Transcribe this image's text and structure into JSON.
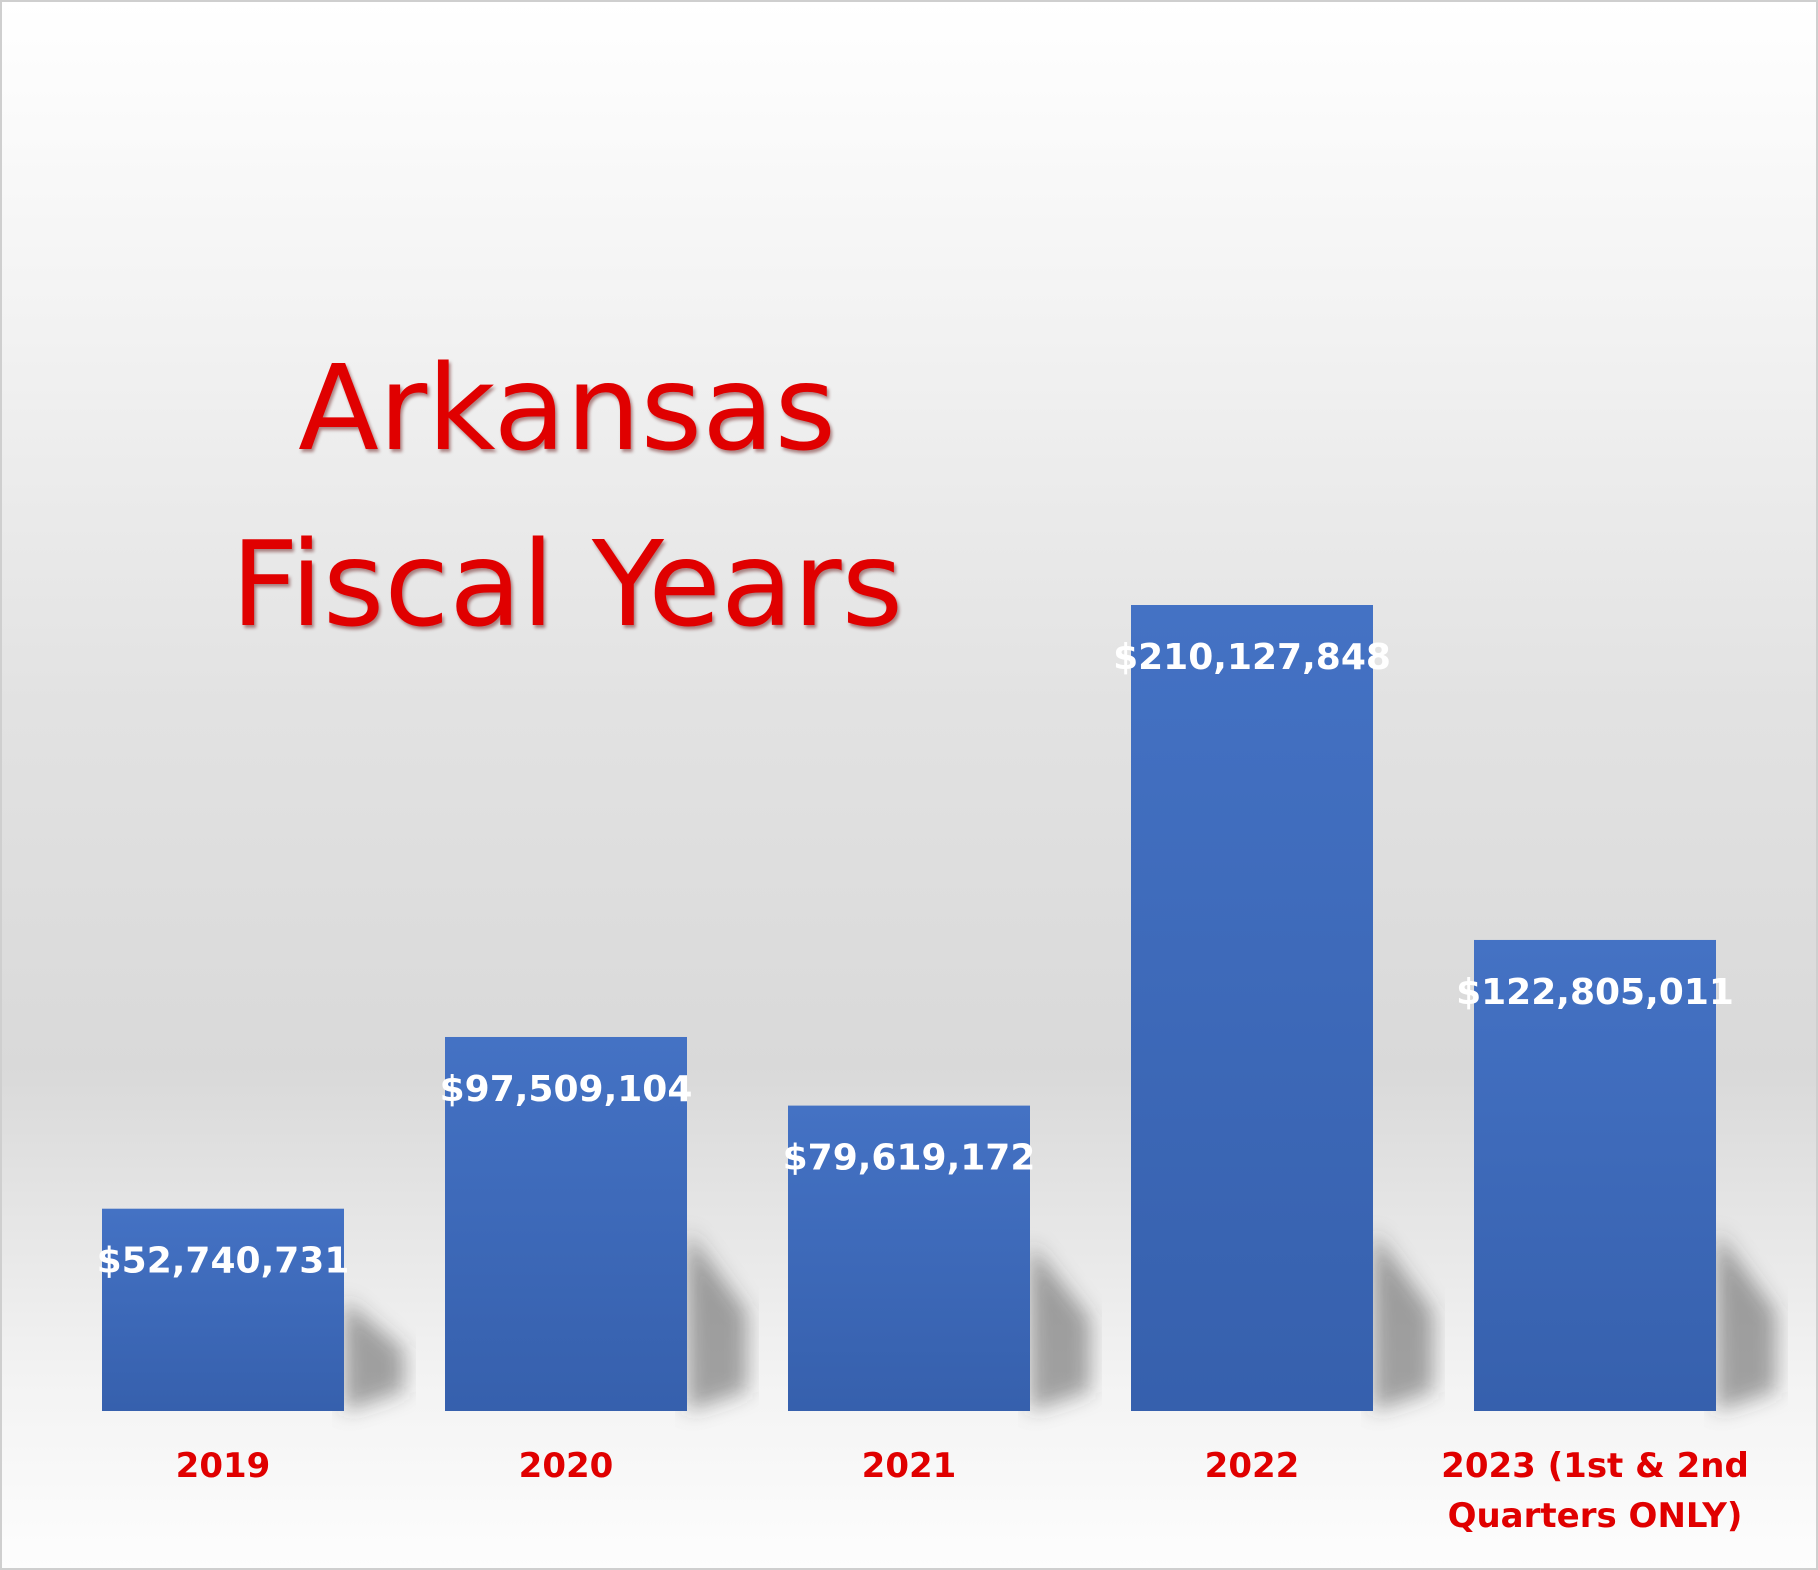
{
  "chart_data": {
    "type": "bar",
    "title_lines": [
      "Arkansas",
      "Fiscal Years"
    ],
    "categories": [
      "2019",
      "2020",
      "2021",
      "2022",
      "2023 (1st & 2nd Quarters ONLY)"
    ],
    "category_label_lines": [
      [
        "2019"
      ],
      [
        "2020"
      ],
      [
        "2021"
      ],
      [
        "2022"
      ],
      [
        "2023 (1st & 2nd",
        "Quarters ONLY)"
      ]
    ],
    "values": [
      52740731,
      97509104,
      79619172,
      210127848,
      122805011
    ],
    "value_labels": [
      "$52,740,731",
      "$97,509,104",
      "$79,619,172",
      "$210,127,848",
      "$122,805,011"
    ],
    "ylim": [
      0,
      210127848
    ],
    "grid": false,
    "legend": "none",
    "colors": {
      "bar_top": "#4472c4",
      "bar_bottom": "#3660ad",
      "title": "#e00000",
      "category_text": "#e00000",
      "value_text": "#ffffff"
    }
  }
}
